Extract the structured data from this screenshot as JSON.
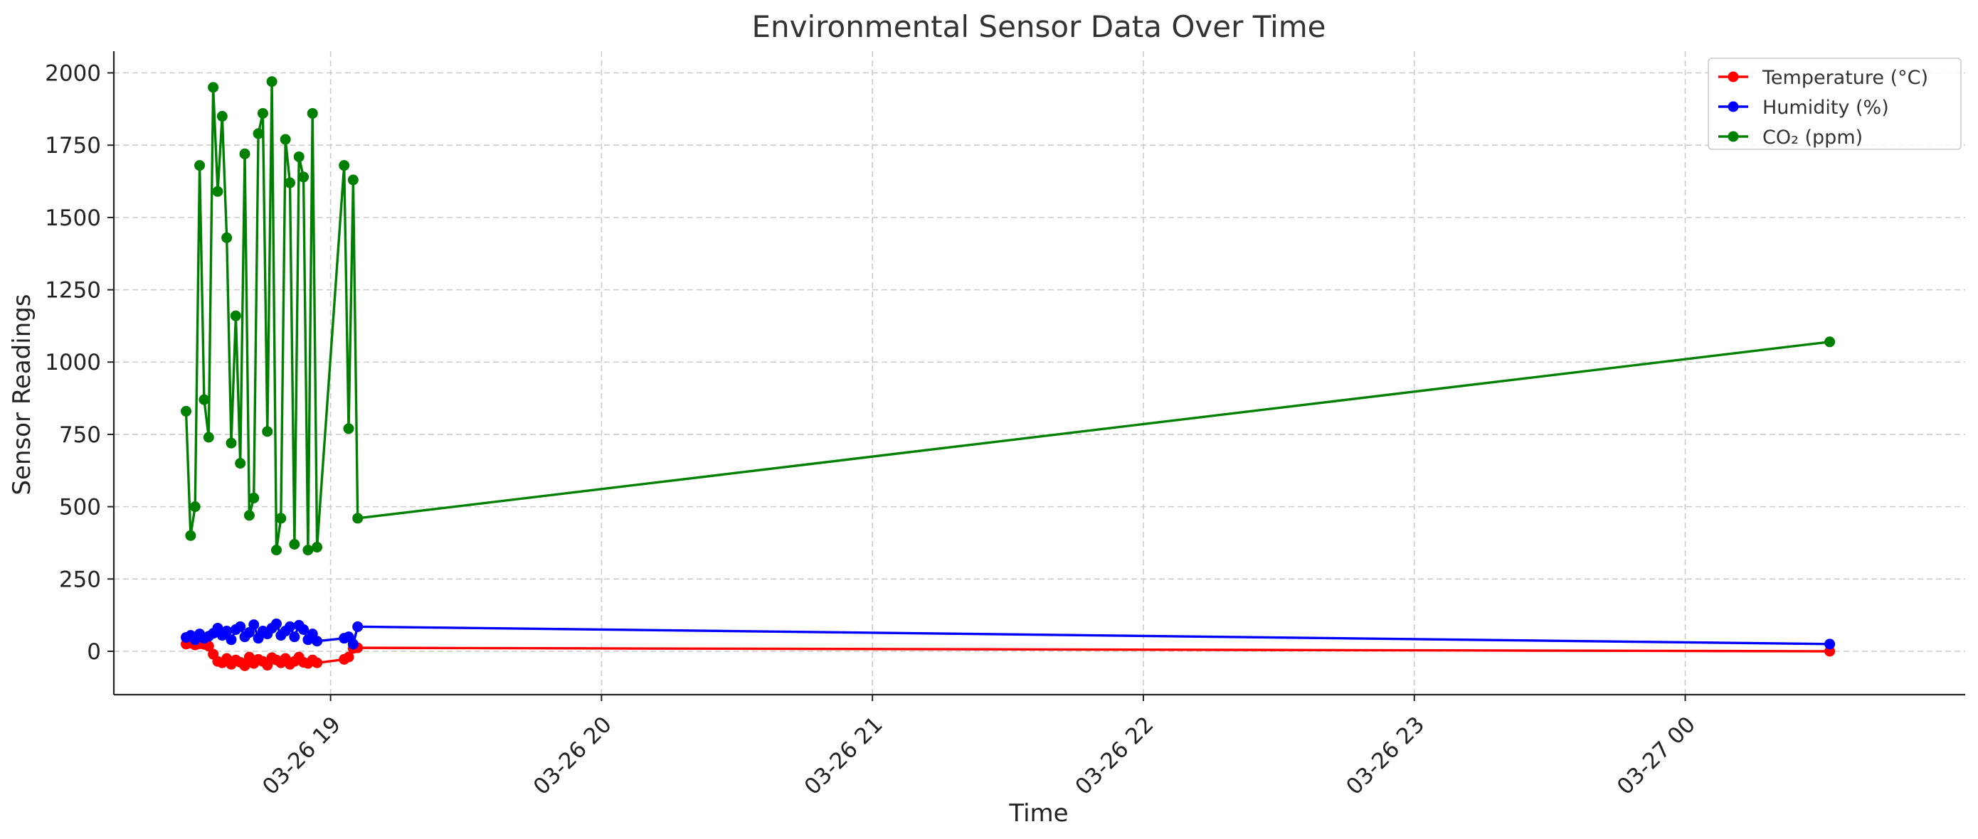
{
  "chart_data": {
    "type": "line",
    "title": "Environmental Sensor Data Over Time",
    "xlabel": "Time",
    "ylabel": "Sensor Readings",
    "x_axis_type": "datetime",
    "xlim": [
      "2025-03-26 18:12",
      "2025-03-27 01:02"
    ],
    "ylim": [
      -150,
      2075
    ],
    "yticks": [
      0,
      250,
      500,
      750,
      1000,
      1250,
      1500,
      1750,
      2000
    ],
    "xticks": [
      {
        "t": "2025-03-26 19:00",
        "label": "03-26 19"
      },
      {
        "t": "2025-03-26 20:00",
        "label": "03-26 20"
      },
      {
        "t": "2025-03-26 21:00",
        "label": "03-26 21"
      },
      {
        "t": "2025-03-26 22:00",
        "label": "03-26 22"
      },
      {
        "t": "2025-03-26 23:00",
        "label": "03-26 23"
      },
      {
        "t": "2025-03-27 00:00",
        "label": "03-27 00"
      }
    ],
    "grid": true,
    "legend_position": "top-right",
    "x": [
      "2025-03-26 18:28",
      "2025-03-26 18:29",
      "2025-03-26 18:30",
      "2025-03-26 18:31",
      "2025-03-26 18:32",
      "2025-03-26 18:33",
      "2025-03-26 18:34",
      "2025-03-26 18:35",
      "2025-03-26 18:36",
      "2025-03-26 18:37",
      "2025-03-26 18:38",
      "2025-03-26 18:39",
      "2025-03-26 18:40",
      "2025-03-26 18:41",
      "2025-03-26 18:42",
      "2025-03-26 18:43",
      "2025-03-26 18:44",
      "2025-03-26 18:45",
      "2025-03-26 18:46",
      "2025-03-26 18:47",
      "2025-03-26 18:48",
      "2025-03-26 18:49",
      "2025-03-26 18:50",
      "2025-03-26 18:51",
      "2025-03-26 18:52",
      "2025-03-26 18:53",
      "2025-03-26 18:54",
      "2025-03-26 18:55",
      "2025-03-26 18:56",
      "2025-03-26 18:57",
      "2025-03-26 19:03",
      "2025-03-26 19:04",
      "2025-03-26 19:05",
      "2025-03-26 19:06",
      "2025-03-27 00:32"
    ],
    "series": [
      {
        "name": "Temperature (°C)",
        "color": "#ff0000",
        "values": [
          25,
          28,
          22,
          26,
          24,
          18,
          -10,
          -35,
          -40,
          -25,
          -45,
          -30,
          -38,
          -50,
          -20,
          -42,
          -28,
          -35,
          -48,
          -22,
          -30,
          -40,
          -25,
          -45,
          -35,
          -20,
          -38,
          -42,
          -30,
          -40,
          -28,
          -20,
          10,
          12,
          0
        ]
      },
      {
        "name": "Humidity (%)",
        "color": "#0000ff",
        "values": [
          48,
          55,
          40,
          60,
          45,
          52,
          62,
          80,
          55,
          70,
          40,
          75,
          85,
          50,
          65,
          92,
          45,
          70,
          60,
          80,
          95,
          55,
          70,
          85,
          50,
          90,
          75,
          40,
          60,
          35,
          45,
          50,
          25,
          85,
          25
        ]
      },
      {
        "name": "CO₂ (ppm)",
        "color": "#008000",
        "values": [
          830,
          400,
          500,
          1680,
          870,
          740,
          1950,
          1590,
          1850,
          1430,
          720,
          1160,
          650,
          1720,
          470,
          530,
          1790,
          1860,
          760,
          1970,
          350,
          460,
          1770,
          1620,
          370,
          1710,
          1640,
          350,
          1860,
          360,
          1680,
          770,
          1630,
          460,
          1070
        ]
      }
    ]
  }
}
